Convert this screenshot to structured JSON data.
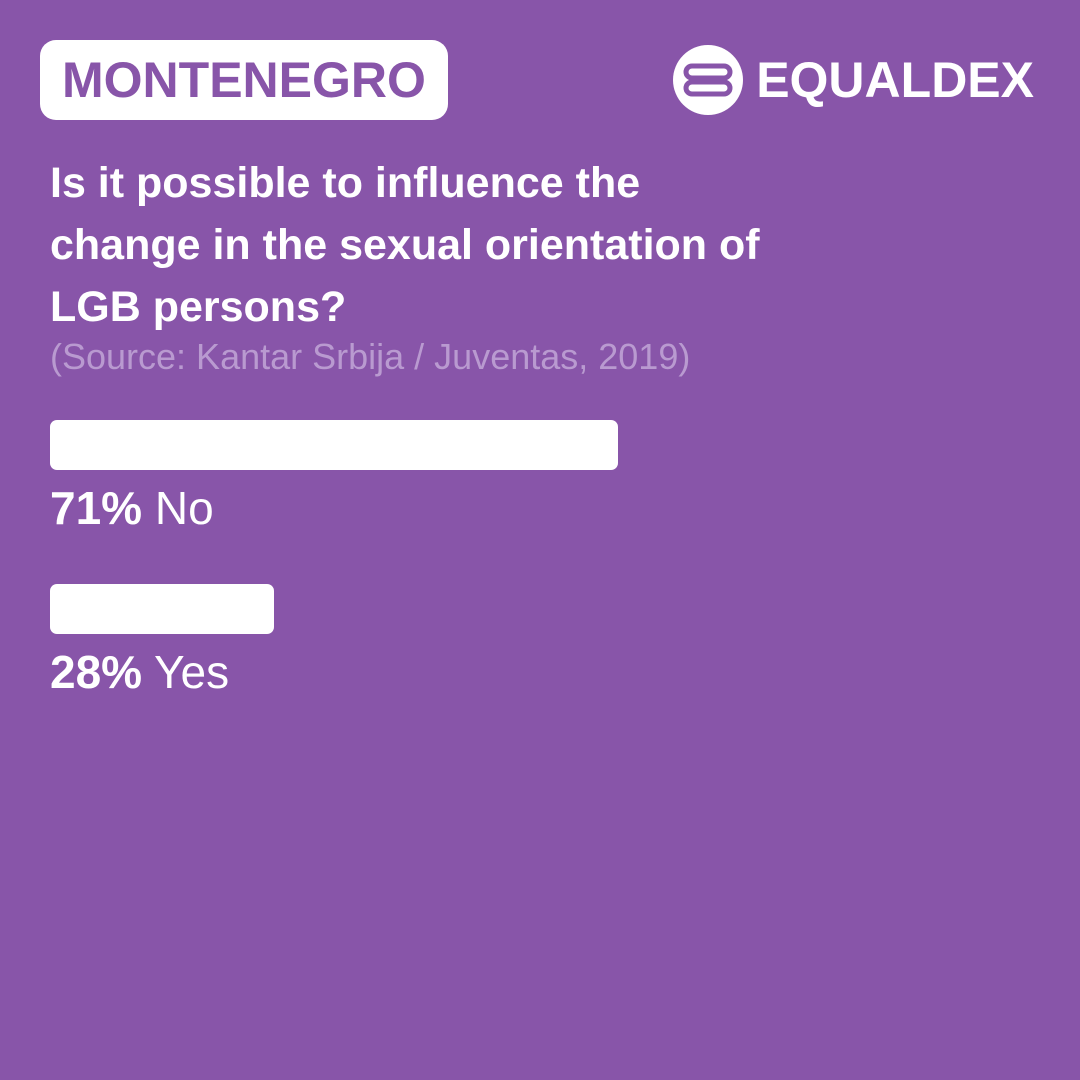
{
  "country": "MONTENEGRO",
  "brand": "EQUALDEX",
  "chart_data": {
    "type": "bar",
    "orientation": "horizontal",
    "title": "Is it possible to influence the\nchange in the sexual orientation of\nLGB persons?",
    "subtitle": "(Source: Kantar Srbija / Juventas, 2019)",
    "categories": [
      "No",
      "Yes"
    ],
    "values": [
      71,
      28
    ],
    "value_labels": [
      "71%",
      "28%"
    ],
    "color": "#ffffff"
  }
}
